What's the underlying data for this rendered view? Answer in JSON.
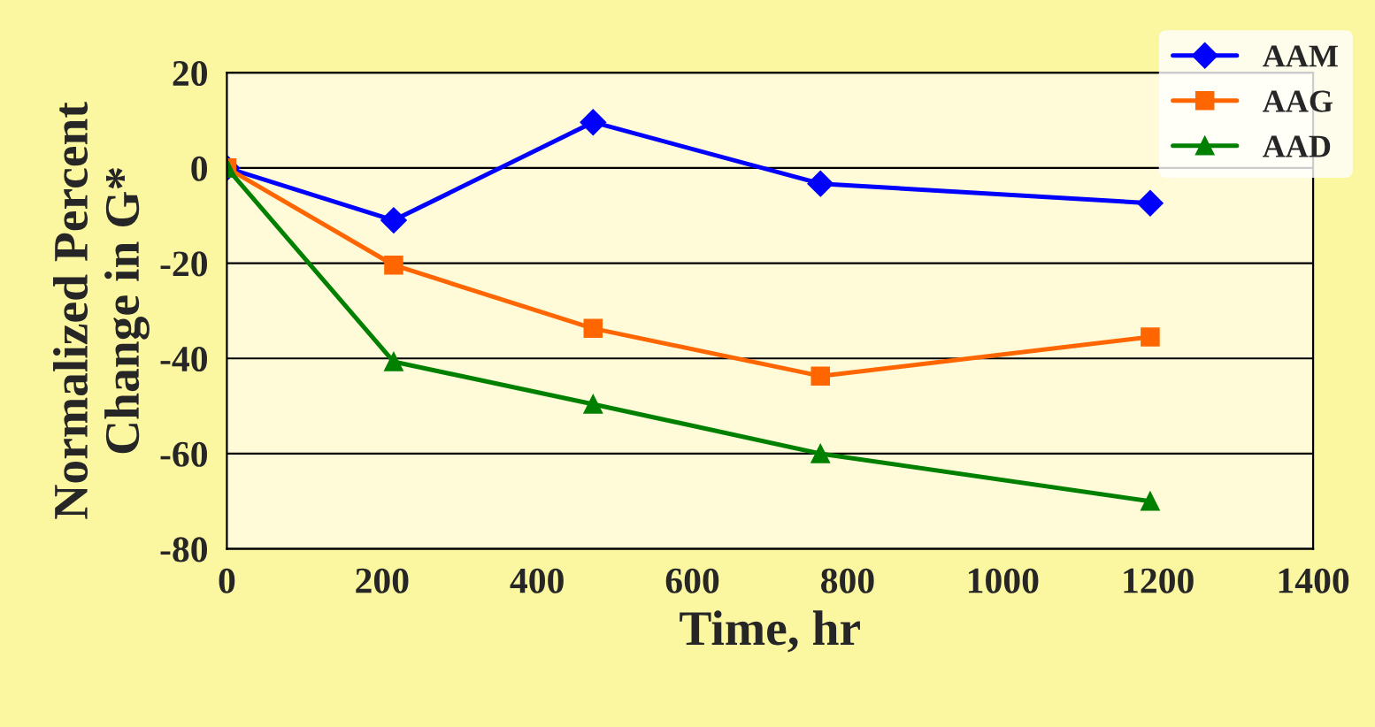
{
  "chart_data": {
    "type": "line",
    "xlabel": "Time, hr",
    "ylabel": "Normalized Percent\nChange in G*",
    "series": [
      {
        "name": "AAM",
        "color": "#0000ff",
        "marker": "diamond",
        "x": [
          0,
          215,
          472,
          765,
          1190
        ],
        "values": [
          0,
          -11,
          9.6,
          -3.3,
          -7.4
        ]
      },
      {
        "name": "AAG",
        "color": "#ff6600",
        "marker": "square",
        "x": [
          0,
          215,
          472,
          765,
          1190
        ],
        "values": [
          0,
          -20.4,
          -33.7,
          -43.7,
          -35.5
        ]
      },
      {
        "name": "AAD",
        "color": "#008000",
        "marker": "triangle",
        "x": [
          0,
          215,
          472,
          765,
          1190
        ],
        "values": [
          0,
          -40.7,
          -49.6,
          -60,
          -70
        ]
      }
    ],
    "xlim": [
      0,
      1400
    ],
    "xticks": [
      0,
      200,
      400,
      600,
      800,
      1000,
      1200,
      1400
    ],
    "ylim": [
      -80,
      20
    ],
    "yticks": [
      -80,
      -60,
      -40,
      -20,
      0,
      20
    ],
    "grid": "y",
    "legend": "top right",
    "line_style": "solid"
  }
}
